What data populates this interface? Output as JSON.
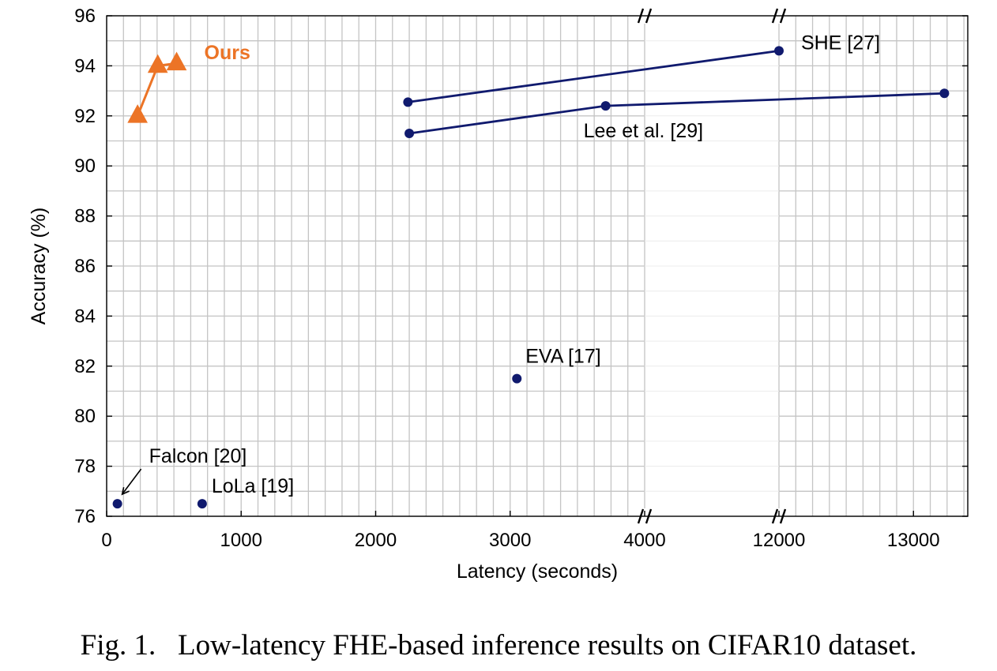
{
  "chart_data": {
    "type": "scatter",
    "xlabel": "Latency (seconds)",
    "ylabel": "Accuracy (%)",
    "ylim": [
      76,
      96
    ],
    "y_ticks": [
      76,
      78,
      80,
      82,
      84,
      86,
      88,
      90,
      92,
      94,
      96
    ],
    "x_ticks": [
      0,
      1000,
      2000,
      3000,
      4000,
      12000,
      13000
    ],
    "x_tick_labels": [
      "0",
      "1000",
      "2000",
      "3000",
      "4000",
      "12000",
      "13000"
    ],
    "x_axis_break": {
      "from": 4000,
      "to": 12000
    },
    "grid": true,
    "colors": {
      "ours": "#ec7426",
      "baseline": "#101a6e",
      "grid": "#c4c4c4"
    },
    "series": [
      {
        "name": "Ours",
        "marker": "triangle",
        "x": [
          230,
          380,
          520
        ],
        "y": [
          92.0,
          94.0,
          94.1
        ]
      },
      {
        "name": "",
        "marker": "circle",
        "x": [
          2240,
          12000
        ],
        "y": [
          92.55,
          94.6
        ]
      },
      {
        "name": "",
        "marker": "circle",
        "x": [
          2250,
          3710,
          13230
        ],
        "y": [
          91.3,
          92.4,
          92.9
        ]
      },
      {
        "name": "",
        "marker": "circle",
        "x": [
          3050,
          80,
          710
        ],
        "y": [
          81.5,
          76.5,
          76.5
        ]
      }
    ],
    "annotations": [
      {
        "id": "she",
        "text": "SHE [27]",
        "x": 12000,
        "y": 94.6
      },
      {
        "id": "lee",
        "text": "Lee et al. [29]",
        "x": 3710,
        "y": 92.4
      },
      {
        "id": "eva",
        "text": "EVA [17]",
        "x": 3050,
        "y": 81.5
      },
      {
        "id": "falcon",
        "text": "Falcon [20]",
        "x": 80,
        "y": 76.5,
        "arrow": true
      },
      {
        "id": "lola",
        "text": "LoLa [19]",
        "x": 710,
        "y": 76.5
      }
    ]
  },
  "caption": "Fig. 1.   Low-latency FHE-based inference results on CIFAR10 dataset."
}
